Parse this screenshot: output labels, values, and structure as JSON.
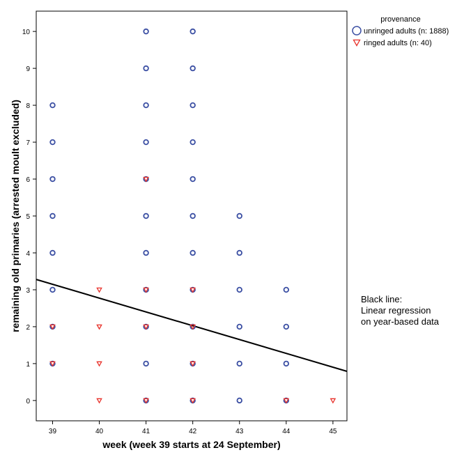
{
  "chart_data": {
    "type": "scatter",
    "xlabel": "week (week 39 starts at 24 September)",
    "ylabel": "remaining old primaries (arrested moult excluded)",
    "xlim": [
      38.65,
      45.3
    ],
    "ylim": [
      -0.55,
      10.55
    ],
    "x_ticks": [
      39,
      40,
      41,
      42,
      43,
      44,
      45
    ],
    "y_ticks": [
      0,
      1,
      2,
      3,
      4,
      5,
      6,
      7,
      8,
      9,
      10
    ],
    "grid": false,
    "legend": {
      "title": "provenance",
      "placement": "top-right outside",
      "entries": [
        {
          "label": "unringed adults (n: 1888)",
          "marker": "circle",
          "color": "#3b4fa3"
        },
        {
          "label": "ringed adults (n: 40)",
          "marker": "triangle-down",
          "color": "#e8312a"
        }
      ]
    },
    "series": [
      {
        "name": "unringed adults (n: 1888)",
        "marker": "circle",
        "color": "#3b4fa3",
        "points": [
          [
            39,
            8
          ],
          [
            39,
            7
          ],
          [
            39,
            6
          ],
          [
            39,
            5
          ],
          [
            39,
            4
          ],
          [
            39,
            3
          ],
          [
            39,
            2
          ],
          [
            39,
            1
          ],
          [
            41,
            10
          ],
          [
            41,
            9
          ],
          [
            41,
            8
          ],
          [
            41,
            7
          ],
          [
            41,
            6
          ],
          [
            41,
            5
          ],
          [
            41,
            4
          ],
          [
            41,
            3
          ],
          [
            41,
            2
          ],
          [
            41,
            1
          ],
          [
            41,
            0
          ],
          [
            42,
            10
          ],
          [
            42,
            9
          ],
          [
            42,
            8
          ],
          [
            42,
            7
          ],
          [
            42,
            6
          ],
          [
            42,
            5
          ],
          [
            42,
            4
          ],
          [
            42,
            3
          ],
          [
            42,
            2
          ],
          [
            42,
            1
          ],
          [
            42,
            0
          ],
          [
            43,
            5
          ],
          [
            43,
            4
          ],
          [
            43,
            3
          ],
          [
            43,
            2
          ],
          [
            43,
            1
          ],
          [
            43,
            0
          ],
          [
            44,
            3
          ],
          [
            44,
            2
          ],
          [
            44,
            1
          ],
          [
            44,
            0
          ]
        ]
      },
      {
        "name": "ringed adults (n: 40)",
        "marker": "triangle-down",
        "color": "#e8312a",
        "points": [
          [
            39,
            2
          ],
          [
            39,
            1
          ],
          [
            40,
            3
          ],
          [
            40,
            2
          ],
          [
            40,
            1
          ],
          [
            40,
            0
          ],
          [
            41,
            6
          ],
          [
            41,
            3
          ],
          [
            41,
            2
          ],
          [
            41,
            0
          ],
          [
            42,
            3
          ],
          [
            42,
            2
          ],
          [
            42,
            1
          ],
          [
            42,
            0
          ],
          [
            44,
            0
          ],
          [
            45,
            0
          ]
        ]
      }
    ],
    "regression_line": {
      "color": "#000000",
      "x": [
        38.65,
        45.3
      ],
      "y": [
        3.28,
        0.79
      ]
    },
    "annotation": [
      "Black line:",
      "Linear regression",
      "on year-based data"
    ]
  }
}
